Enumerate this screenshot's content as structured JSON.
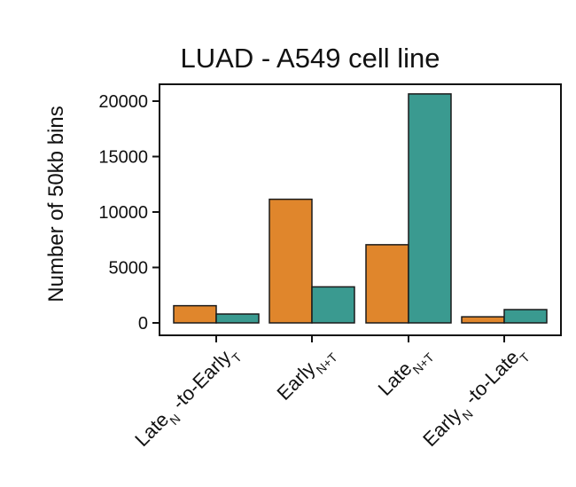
{
  "chart_data": {
    "type": "bar",
    "title": "LUAD - A549 cell line",
    "ylabel": "Number of 50kb bins",
    "xlabel": "",
    "ylim": [
      0,
      21000
    ],
    "yticks": [
      0,
      5000,
      10000,
      15000,
      20000
    ],
    "categories": [
      {
        "base1": "Late",
        "sub1": "N",
        "base2": " -to-Early",
        "sub2": "T"
      },
      {
        "base1": "Early",
        "sub1": "N+T",
        "base2": "",
        "sub2": ""
      },
      {
        "base1": "Late",
        "sub1": "N+T",
        "base2": "",
        "sub2": ""
      },
      {
        "base1": "Early",
        "sub1": "N",
        "base2": " -to-Late",
        "sub2": "T"
      }
    ],
    "series": [
      {
        "color": "#e0862c",
        "values": [
          1550,
          11150,
          7050,
          550
        ]
      },
      {
        "color": "#3a9a90",
        "values": [
          800,
          3250,
          20650,
          1200
        ]
      }
    ],
    "grid": false,
    "legend": "none"
  }
}
